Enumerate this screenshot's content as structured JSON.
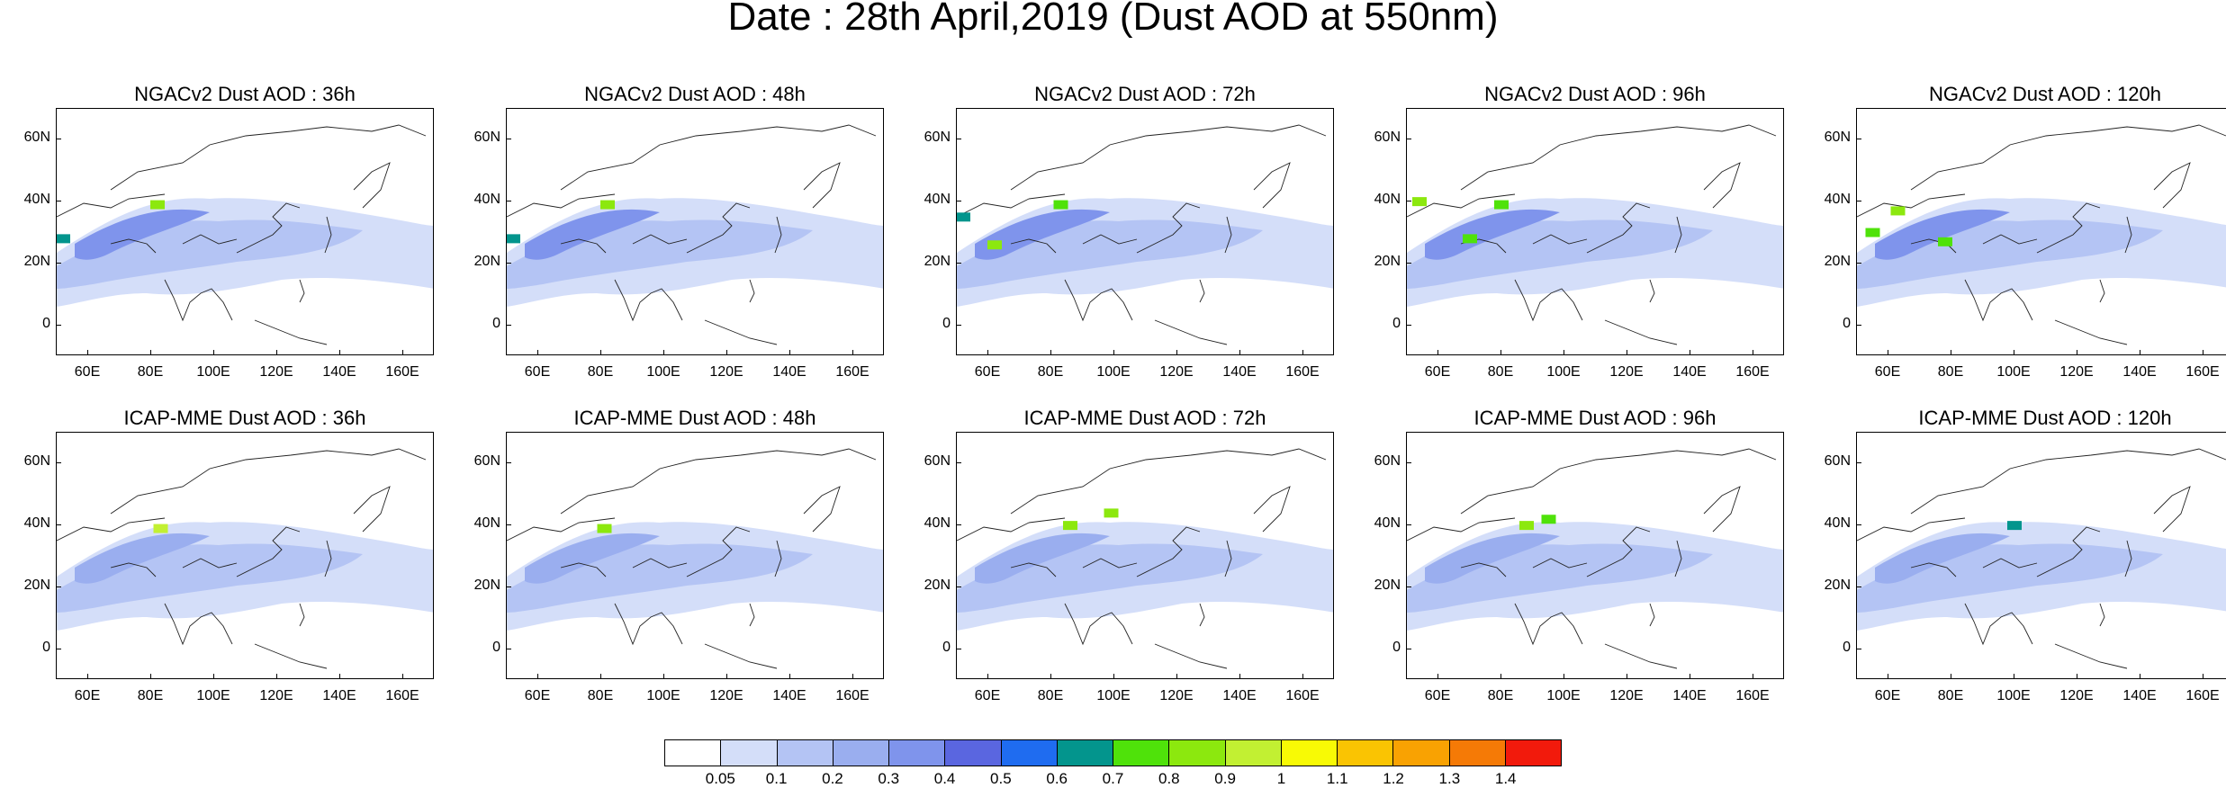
{
  "title": "Date : 28th April,2019 (Dust AOD at 550nm)",
  "chart_data": {
    "type": "heatmap",
    "title": "Date : 28th April,2019 (Dust AOD at 550nm)",
    "variable": "Dust AOD at 550nm",
    "date": "28th April,2019",
    "map_extent": {
      "lon": [
        50,
        170
      ],
      "lat": [
        -10,
        70
      ]
    },
    "x_ticks": [
      "60E",
      "80E",
      "100E",
      "120E",
      "140E",
      "160E"
    ],
    "y_ticks": [
      "60N",
      "40N",
      "20N",
      "0"
    ],
    "panels": [
      {
        "title": "NGACv2 Dust AOD : 36h",
        "model": "NGACv2",
        "lead": "36h",
        "hotspots": [
          {
            "lon": 82,
            "lat": 39,
            "aod": 0.8
          },
          {
            "lon": 52,
            "lat": 28,
            "aod": 0.6
          }
        ]
      },
      {
        "title": "NGACv2 Dust AOD : 48h",
        "model": "NGACv2",
        "lead": "48h",
        "hotspots": [
          {
            "lon": 82,
            "lat": 39,
            "aod": 0.8
          },
          {
            "lon": 52,
            "lat": 28,
            "aod": 0.6
          }
        ]
      },
      {
        "title": "NGACv2 Dust AOD : 72h",
        "model": "NGACv2",
        "lead": "72h",
        "hotspots": [
          {
            "lon": 83,
            "lat": 39,
            "aod": 0.7
          },
          {
            "lon": 62,
            "lat": 26,
            "aod": 0.8
          },
          {
            "lon": 52,
            "lat": 35,
            "aod": 0.6
          }
        ]
      },
      {
        "title": "NGACv2 Dust AOD : 96h",
        "model": "NGACv2",
        "lead": "96h",
        "hotspots": [
          {
            "lon": 54,
            "lat": 40,
            "aod": 0.8
          },
          {
            "lon": 70,
            "lat": 28,
            "aod": 0.7
          },
          {
            "lon": 80,
            "lat": 39,
            "aod": 0.7
          }
        ]
      },
      {
        "title": "NGACv2 Dust AOD : 120h",
        "model": "NGACv2",
        "lead": "120h",
        "hotspots": [
          {
            "lon": 63,
            "lat": 37,
            "aod": 0.8
          },
          {
            "lon": 78,
            "lat": 27,
            "aod": 0.7
          },
          {
            "lon": 55,
            "lat": 30,
            "aod": 0.7
          }
        ]
      },
      {
        "title": "ICAP-MME Dust AOD : 36h",
        "model": "ICAP-MME",
        "lead": "36h",
        "hotspots": [
          {
            "lon": 83,
            "lat": 39,
            "aod": 0.9
          }
        ]
      },
      {
        "title": "ICAP-MME Dust AOD : 48h",
        "model": "ICAP-MME",
        "lead": "48h",
        "hotspots": [
          {
            "lon": 81,
            "lat": 39,
            "aod": 0.8
          }
        ]
      },
      {
        "title": "ICAP-MME Dust AOD : 72h",
        "model": "ICAP-MME",
        "lead": "72h",
        "hotspots": [
          {
            "lon": 86,
            "lat": 40,
            "aod": 0.8
          },
          {
            "lon": 99,
            "lat": 44,
            "aod": 0.8
          }
        ]
      },
      {
        "title": "ICAP-MME Dust AOD : 96h",
        "model": "ICAP-MME",
        "lead": "96h",
        "hotspots": [
          {
            "lon": 88,
            "lat": 40,
            "aod": 0.8
          },
          {
            "lon": 95,
            "lat": 42,
            "aod": 0.7
          }
        ]
      },
      {
        "title": "ICAP-MME Dust AOD : 120h",
        "model": "ICAP-MME",
        "lead": "120h",
        "hotspots": [
          {
            "lon": 100,
            "lat": 40,
            "aod": 0.6
          }
        ]
      }
    ],
    "colorbar": {
      "levels": [
        "0.05",
        "0.1",
        "0.2",
        "0.3",
        "0.4",
        "0.5",
        "0.6",
        "0.7",
        "0.8",
        "0.9",
        "1",
        "1.1",
        "1.2",
        "1.3",
        "1.4"
      ],
      "colors": [
        "#ffffff",
        "#d4def9",
        "#b4c4f4",
        "#9aaeef",
        "#7f94ec",
        "#5a66e0",
        "#1f6cf0",
        "#03958d",
        "#4fe20a",
        "#8ce80e",
        "#c2f032",
        "#f8fa05",
        "#fac402",
        "#f9a202",
        "#f57a06",
        "#f21a0c"
      ]
    }
  }
}
